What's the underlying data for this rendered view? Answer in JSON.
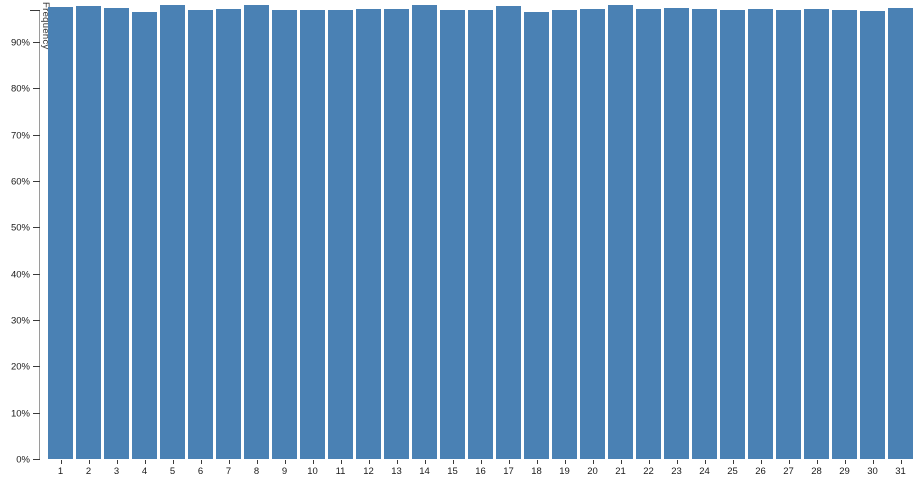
{
  "chart_data": {
    "type": "bar",
    "title": "",
    "xlabel": "",
    "ylabel": "Frequency",
    "categories": [
      "1",
      "2",
      "3",
      "4",
      "5",
      "6",
      "7",
      "8",
      "9",
      "10",
      "11",
      "12",
      "13",
      "14",
      "15",
      "16",
      "17",
      "18",
      "19",
      "20",
      "21",
      "22",
      "23",
      "24",
      "25",
      "26",
      "27",
      "28",
      "29",
      "30",
      "31"
    ],
    "values": [
      97.6,
      97.8,
      97.3,
      96.5,
      98.0,
      96.9,
      97.1,
      98.1,
      96.9,
      96.9,
      96.9,
      97.1,
      97.1,
      98.1,
      96.9,
      96.9,
      97.7,
      96.5,
      96.9,
      97.1,
      98.0,
      97.1,
      97.3,
      97.1,
      96.9,
      97.1,
      96.9,
      97.1,
      96.9,
      96.6,
      97.4
    ],
    "y_tick_labels": [
      "0%",
      "10%",
      "20%",
      "30%",
      "40%",
      "50%",
      "60%",
      "70%",
      "80%",
      "90%"
    ],
    "y_tick_values": [
      0,
      10,
      20,
      30,
      40,
      50,
      60,
      70,
      80,
      90
    ],
    "ylim": [
      0,
      97
    ],
    "grid": false,
    "legend": false,
    "bar_color": "#4a81b4",
    "axis_color": "#9a9a9a",
    "tick_color": "#3a3a3a",
    "text_color": "#1a1a1a"
  }
}
